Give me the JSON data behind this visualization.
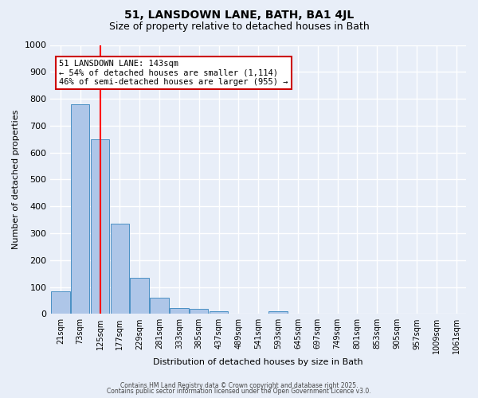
{
  "title1": "51, LANSDOWN LANE, BATH, BA1 4JL",
  "title2": "Size of property relative to detached houses in Bath",
  "xlabel": "Distribution of detached houses by size in Bath",
  "ylabel": "Number of detached properties",
  "categories": [
    "21sqm",
    "73sqm",
    "125sqm",
    "177sqm",
    "229sqm",
    "281sqm",
    "333sqm",
    "385sqm",
    "437sqm",
    "489sqm",
    "541sqm",
    "593sqm",
    "645sqm",
    "697sqm",
    "749sqm",
    "801sqm",
    "853sqm",
    "905sqm",
    "957sqm",
    "1009sqm",
    "1061sqm"
  ],
  "values": [
    85,
    780,
    650,
    335,
    135,
    60,
    22,
    18,
    10,
    0,
    0,
    10,
    0,
    0,
    0,
    0,
    0,
    0,
    0,
    0,
    0
  ],
  "bar_color": "#aec6e8",
  "bar_edge_color": "#4a90c4",
  "background_color": "#e8eef8",
  "grid_color": "#ffffff",
  "red_line_x": 2.0,
  "annotation_text": "51 LANSDOWN LANE: 143sqm\n← 54% of detached houses are smaller (1,114)\n46% of semi-detached houses are larger (955) →",
  "annotation_box_color": "#ffffff",
  "annotation_box_edge": "#cc0000",
  "ylim": [
    0,
    1000
  ],
  "yticks": [
    0,
    100,
    200,
    300,
    400,
    500,
    600,
    700,
    800,
    900,
    1000
  ],
  "footer1": "Contains HM Land Registry data © Crown copyright and database right 2025.",
  "footer2": "Contains public sector information licensed under the Open Government Licence v3.0."
}
